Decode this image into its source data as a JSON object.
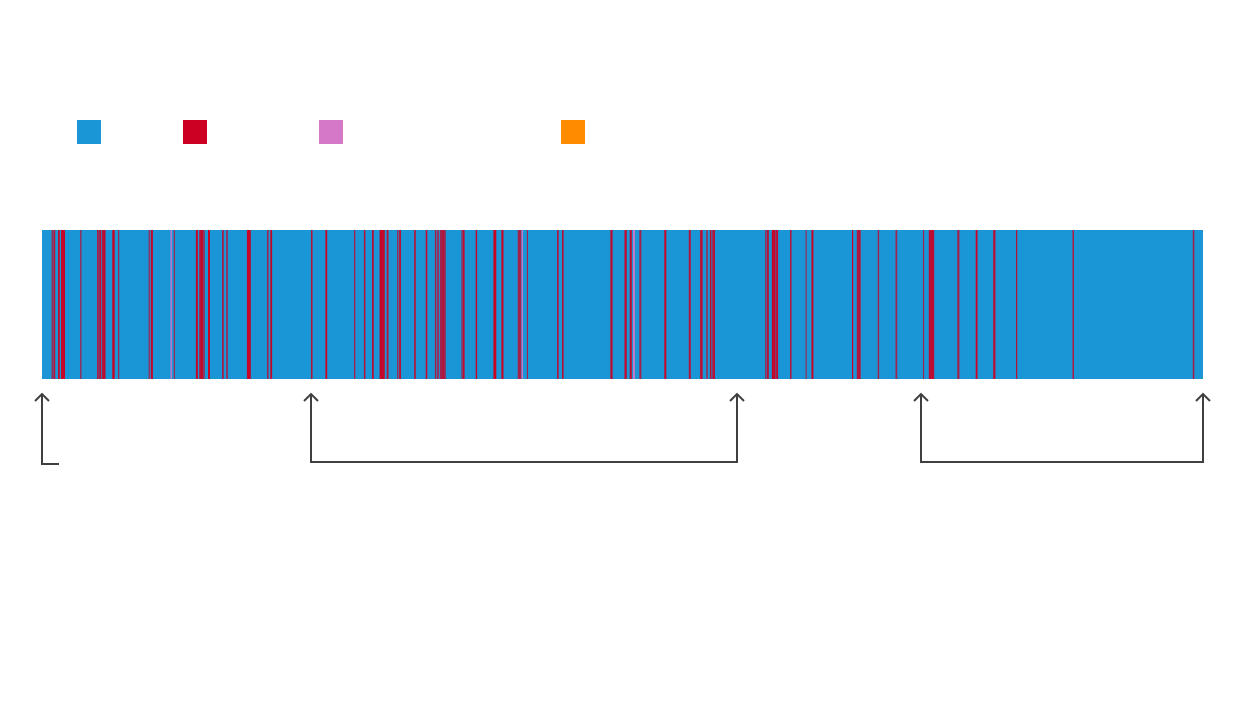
{
  "legend": [
    {
      "color": "#1a95d6"
    },
    {
      "color": "#cc0022"
    },
    {
      "color": "#d678c8"
    },
    {
      "color": "#ff8c00"
    }
  ],
  "sequence": {
    "base_color": "#1a95d6",
    "stripe_color": "#cc0022",
    "highlight_color": "#d678c8",
    "outline_color": "#404040",
    "stripe_seed": 27,
    "stripe_count": 260
  },
  "markers": 5
}
